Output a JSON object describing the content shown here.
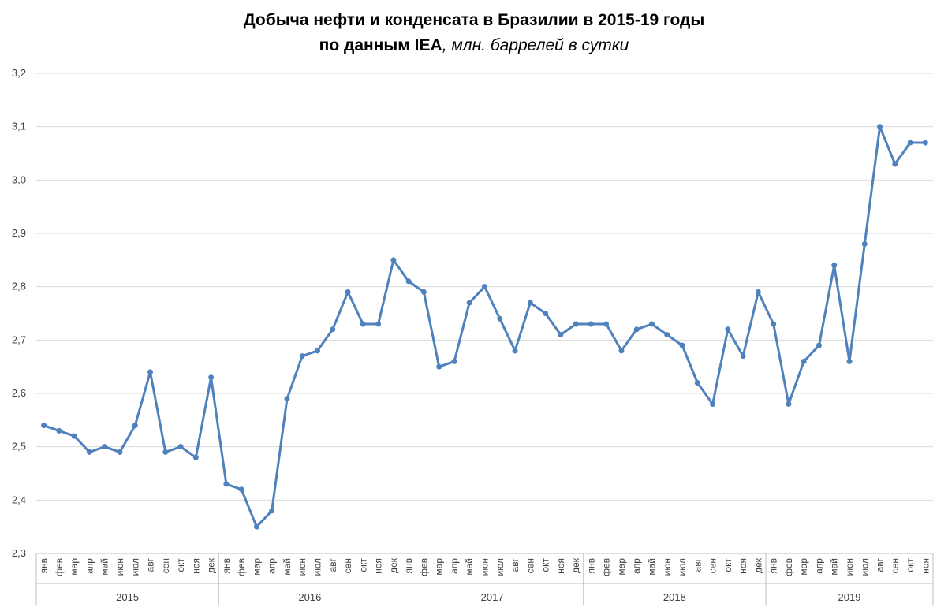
{
  "chart_data": {
    "type": "line",
    "title": "Добыча нефти и конденсата в Бразилии в 2015-19 годы",
    "subtitle_bold": "по данным IEA",
    "subtitle_italic": ", млн. баррелей в сутки",
    "xlabel": "",
    "ylabel": "",
    "ylim": [
      2.3,
      3.2
    ],
    "yticks": [
      "2,3",
      "2,4",
      "2,5",
      "2,6",
      "2,7",
      "2,8",
      "2,9",
      "3,0",
      "3,1",
      "3,2"
    ],
    "grid": true,
    "legend": "none",
    "line_color": "#4F81BD",
    "years": [
      "2015",
      "2016",
      "2017",
      "2018",
      "2019"
    ],
    "months": [
      "янв",
      "фев",
      "мар",
      "апр",
      "май",
      "июн",
      "июл",
      "авг",
      "сен",
      "окт",
      "ноя",
      "дек"
    ],
    "last_year_month_count": 11,
    "series": [
      {
        "values": [
          2.54,
          2.53,
          2.52,
          2.49,
          2.5,
          2.49,
          2.54,
          2.64,
          2.49,
          2.5,
          2.48,
          2.63,
          2.43,
          2.42,
          2.35,
          2.38,
          2.59,
          2.67,
          2.68,
          2.72,
          2.79,
          2.73,
          2.73,
          2.85,
          2.81,
          2.79,
          2.65,
          2.66,
          2.77,
          2.8,
          2.74,
          2.68,
          2.77,
          2.75,
          2.71,
          2.73,
          2.73,
          2.73,
          2.68,
          2.72,
          2.73,
          2.71,
          2.69,
          2.62,
          2.58,
          2.72,
          2.67,
          2.79,
          2.73,
          2.58,
          2.66,
          2.69,
          2.84,
          2.66,
          2.88,
          3.1,
          3.03,
          3.07,
          3.07
        ]
      }
    ]
  }
}
